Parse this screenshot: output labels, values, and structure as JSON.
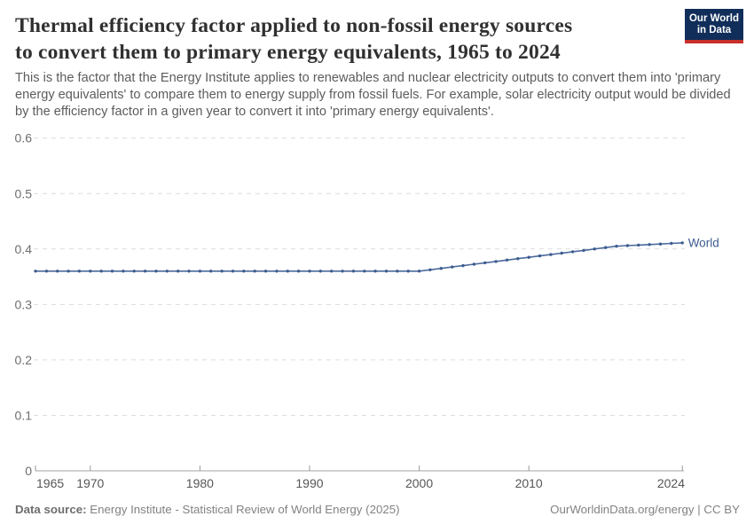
{
  "header": {
    "title_lines": [
      "Thermal efficiency factor applied to non-fossil energy sources",
      "to convert them to primary energy equivalents, 1965 to 2024"
    ]
  },
  "subtitle": "This is the factor that the Energy Institute applies to renewables and nuclear electricity outputs to convert them into 'primary energy equivalents' to compare them to energy supply from fossil fuels. For example, solar electricity output would be divided by the efficiency factor in a given year to convert it into 'primary energy equivalents'.",
  "logo": {
    "line1": "Our World",
    "line2": "in Data",
    "bg_color": "#112e5a",
    "bar_color": "#c8302c"
  },
  "chart_data": {
    "type": "line",
    "title": "Thermal efficiency factor applied to non-fossil energy sources to convert them to primary energy equivalents",
    "xlabel": "",
    "ylabel": "",
    "xlim": [
      1965,
      2024
    ],
    "ylim": [
      0,
      0.6
    ],
    "grid": "horizontal-dashed",
    "legend": "end-of-line-label",
    "x_ticks": [
      1965,
      1970,
      1980,
      1990,
      2000,
      2010,
      2024
    ],
    "y_ticks": [
      0,
      0.1,
      0.2,
      0.3,
      0.4,
      0.5,
      0.6
    ],
    "series": [
      {
        "name": "World",
        "color": "#4c6a9c",
        "label_color": "#3d5c8f",
        "years": [
          1965,
          1966,
          1967,
          1968,
          1969,
          1970,
          1971,
          1972,
          1973,
          1974,
          1975,
          1976,
          1977,
          1978,
          1979,
          1980,
          1981,
          1982,
          1983,
          1984,
          1985,
          1986,
          1987,
          1988,
          1989,
          1990,
          1991,
          1992,
          1993,
          1994,
          1995,
          1996,
          1997,
          1998,
          1999,
          2000,
          2001,
          2002,
          2003,
          2004,
          2005,
          2006,
          2007,
          2008,
          2009,
          2010,
          2011,
          2012,
          2013,
          2014,
          2015,
          2016,
          2017,
          2018,
          2019,
          2020,
          2021,
          2022,
          2023,
          2024
        ],
        "values": [
          0.36,
          0.36,
          0.36,
          0.36,
          0.36,
          0.36,
          0.36,
          0.36,
          0.36,
          0.36,
          0.36,
          0.36,
          0.36,
          0.36,
          0.36,
          0.36,
          0.36,
          0.36,
          0.36,
          0.36,
          0.36,
          0.36,
          0.36,
          0.36,
          0.36,
          0.36,
          0.36,
          0.36,
          0.36,
          0.36,
          0.36,
          0.36,
          0.36,
          0.36,
          0.36,
          0.36,
          0.3625,
          0.365,
          0.3675,
          0.37,
          0.3725,
          0.375,
          0.3775,
          0.38,
          0.3825,
          0.385,
          0.3875,
          0.39,
          0.3925,
          0.395,
          0.3975,
          0.4,
          0.4025,
          0.405,
          0.406,
          0.407,
          0.408,
          0.409,
          0.41,
          0.411
        ]
      }
    ],
    "style": {
      "grid_color": "#dcdcdc",
      "axis_color": "#a3a3a3",
      "tick_color": "#9a9a9a",
      "y_label_color": "#6e6e6e",
      "x_label_color": "#565656"
    }
  },
  "footer": {
    "datasource_label": "Data source:",
    "datasource_value": " Energy Institute - Statistical Review of World Energy (2025)",
    "attribution": "OurWorldinData.org/energy | CC BY"
  }
}
